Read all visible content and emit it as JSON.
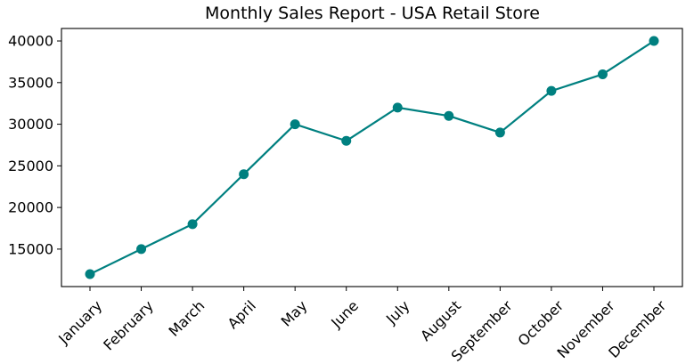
{
  "chart_data": {
    "type": "line",
    "title": "Monthly Sales Report - USA Retail Store",
    "xlabel": "",
    "ylabel": "",
    "categories": [
      "January",
      "February",
      "March",
      "April",
      "May",
      "June",
      "July",
      "August",
      "September",
      "October",
      "November",
      "December"
    ],
    "series": [
      {
        "values": [
          12000,
          15000,
          18000,
          24000,
          30000,
          28000,
          32000,
          31000,
          29000,
          34000,
          36000,
          40000
        ],
        "color": "#008080",
        "marker": "circle"
      }
    ],
    "yticks": [
      15000,
      20000,
      25000,
      30000,
      35000,
      40000
    ],
    "ylim": [
      10500,
      41500
    ],
    "grid": false,
    "legend": "none",
    "xtick_rotation_deg": 45
  }
}
